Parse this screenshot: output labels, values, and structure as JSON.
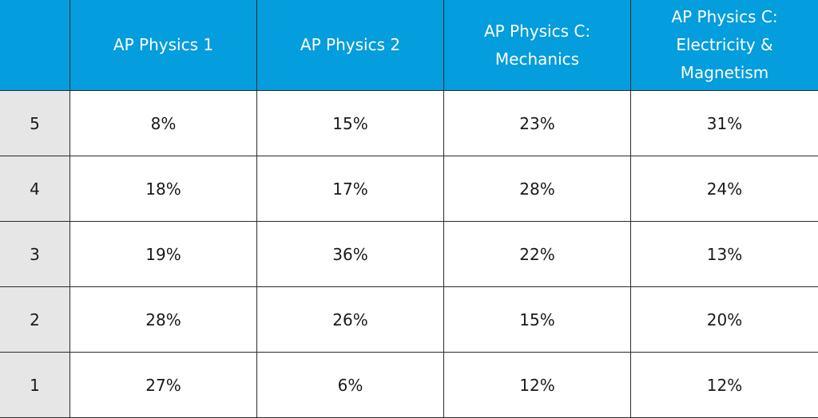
{
  "colors": {
    "header_bg": "#049ddd",
    "header_text": "#ffffff",
    "row_header_bg": "#e6e6e6",
    "grid_line": "#2b2b2b"
  },
  "chart_data": {
    "type": "table",
    "columns": [
      "AP Physics 1",
      "AP Physics 2",
      "AP Physics C: Mechanics",
      "AP Physics C: Electricity & Magnetism"
    ],
    "rows": [
      {
        "label": "5",
        "values": [
          "8%",
          "15%",
          "23%",
          "31%"
        ]
      },
      {
        "label": "4",
        "values": [
          "18%",
          "17%",
          "28%",
          "24%"
        ]
      },
      {
        "label": "3",
        "values": [
          "19%",
          "36%",
          "22%",
          "13%"
        ]
      },
      {
        "label": "2",
        "values": [
          "28%",
          "26%",
          "15%",
          "20%"
        ]
      },
      {
        "label": "1",
        "values": [
          "27%",
          "6%",
          "12%",
          "12%"
        ]
      }
    ]
  }
}
